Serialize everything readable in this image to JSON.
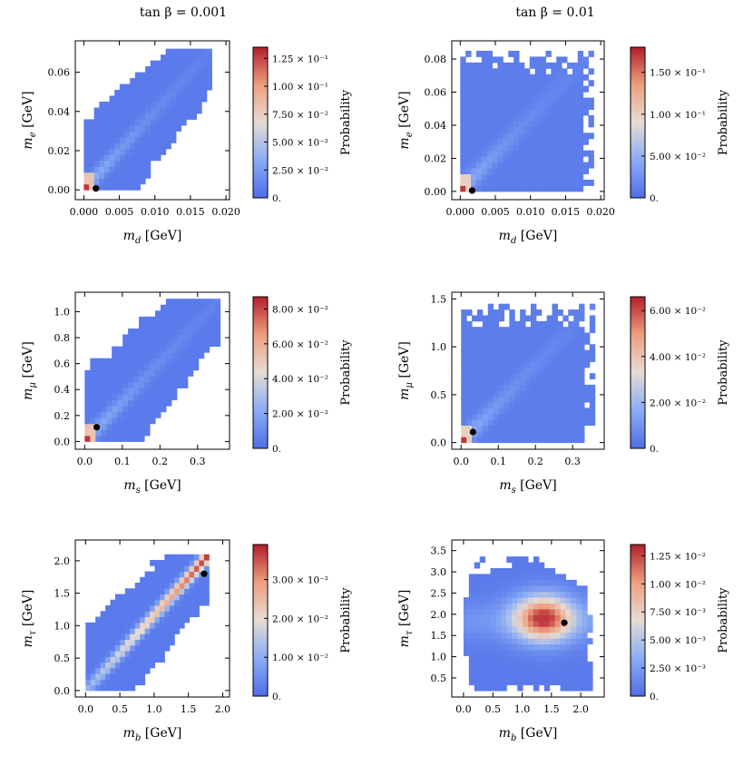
{
  "column_titles": [
    "tan β = 0.001",
    "tan β = 0.01"
  ],
  "chart_data": [
    {
      "type": "heatmap",
      "title": "tan β = 0.001",
      "xlabel": "m_d [GeV]",
      "xlabel_main": "m",
      "xlabel_sub": "d",
      "xlabel_unit": " [GeV]",
      "ylabel": "m_e [GeV]",
      "ylabel_main": "m",
      "ylabel_sub": "e",
      "ylabel_unit": " [GeV]",
      "xlim": [
        -0.0012,
        0.0205
      ],
      "ylim": [
        -0.005,
        0.076
      ],
      "xticks": [
        0,
        0.005,
        0.01,
        0.015,
        0.02
      ],
      "xtick_labels": [
        "0.000",
        "0.005",
        "0.010",
        "0.015",
        "0.020"
      ],
      "yticks": [
        0,
        0.02,
        0.04,
        0.06
      ],
      "ytick_labels": [
        "0.00",
        "0.02",
        "0.04",
        "0.06"
      ],
      "shape": "band",
      "domain": {
        "x": [
          0,
          0.018
        ],
        "y": [
          0,
          0.072
        ]
      },
      "nx": 25,
      "ny": 24,
      "marker": [
        0.0017,
        0.0007
      ],
      "colorbar": {
        "label": "Probability",
        "max": 0.135,
        "ticks": [
          0,
          0.025,
          0.05,
          0.075,
          0.1,
          0.125
        ],
        "tick_labels": [
          "0.",
          "2.50 × 10⁻²",
          "5.00 × 10⁻²",
          "7.50 × 10⁻²",
          "1.00 × 10⁻¹",
          "1.25 × 10⁻¹"
        ]
      }
    },
    {
      "type": "heatmap",
      "title": "tan β = 0.01",
      "xlabel": "m_d [GeV]",
      "xlabel_main": "m",
      "xlabel_sub": "d",
      "xlabel_unit": " [GeV]",
      "ylabel": "m_e [GeV]",
      "ylabel_main": "m",
      "ylabel_sub": "e",
      "ylabel_unit": " [GeV]",
      "xlim": [
        -0.0012,
        0.0205
      ],
      "ylim": [
        -0.005,
        0.091
      ],
      "xticks": [
        0,
        0.005,
        0.01,
        0.015,
        0.02
      ],
      "xtick_labels": [
        "0.000",
        "0.005",
        "0.010",
        "0.015",
        "0.020"
      ],
      "yticks": [
        0,
        0.02,
        0.04,
        0.06,
        0.08
      ],
      "ytick_labels": [
        "0.00",
        "0.02",
        "0.04",
        "0.06",
        "0.08"
      ],
      "shape": "wide",
      "domain": {
        "x": [
          0,
          0.019
        ],
        "y": [
          0,
          0.085
        ]
      },
      "nx": 25,
      "ny": 24,
      "marker": [
        0.0017,
        0.0005
      ],
      "colorbar": {
        "label": "Probability",
        "max": 0.18,
        "ticks": [
          0,
          0.05,
          0.1,
          0.15
        ],
        "tick_labels": [
          "0.",
          "5.00 × 10⁻²",
          "1.00 × 10⁻¹",
          "1.50 × 10⁻¹"
        ]
      }
    },
    {
      "type": "heatmap",
      "title": "",
      "xlabel": "m_s [GeV]",
      "xlabel_main": "m",
      "xlabel_sub": "s",
      "xlabel_unit": " [GeV]",
      "ylabel": "m_μ [GeV]",
      "ylabel_main": "m",
      "ylabel_sub": "μ",
      "ylabel_unit": " [GeV]",
      "xlim": [
        -0.025,
        0.385
      ],
      "ylim": [
        -0.06,
        1.15
      ],
      "xticks": [
        0,
        0.1,
        0.2,
        0.3
      ],
      "xtick_labels": [
        "0.0",
        "0.1",
        "0.2",
        "0.3"
      ],
      "yticks": [
        0,
        0.2,
        0.4,
        0.6,
        0.8,
        1.0
      ],
      "ytick_labels": [
        "0.0",
        "0.2",
        "0.4",
        "0.6",
        "0.8",
        "1.0"
      ],
      "shape": "band",
      "domain": {
        "x": [
          0,
          0.36
        ],
        "y": [
          0,
          1.1
        ]
      },
      "nx": 25,
      "ny": 24,
      "marker": [
        0.032,
        0.11
      ],
      "colorbar": {
        "label": "Probability",
        "max": 0.087,
        "ticks": [
          0,
          0.02,
          0.04,
          0.06,
          0.08
        ],
        "tick_labels": [
          "0.",
          "2.00 × 10⁻²",
          "4.00 × 10⁻²",
          "6.00 × 10⁻²",
          "8.00 × 10⁻²"
        ]
      }
    },
    {
      "type": "heatmap",
      "title": "",
      "xlabel": "m_s [GeV]",
      "xlabel_main": "m",
      "xlabel_sub": "s",
      "xlabel_unit": " [GeV]",
      "ylabel": "m_μ [GeV]",
      "ylabel_main": "m",
      "ylabel_sub": "μ",
      "ylabel_unit": " [GeV]",
      "xlim": [
        -0.025,
        0.385
      ],
      "ylim": [
        -0.07,
        1.57
      ],
      "xticks": [
        0,
        0.1,
        0.2,
        0.3
      ],
      "xtick_labels": [
        "0.0",
        "0.1",
        "0.2",
        "0.3"
      ],
      "yticks": [
        0,
        0.5,
        1.0,
        1.5
      ],
      "ytick_labels": [
        "0.0",
        "0.5",
        "1.0",
        "1.5"
      ],
      "shape": "wide",
      "domain": {
        "x": [
          0,
          0.36
        ],
        "y": [
          0,
          1.45
        ]
      },
      "nx": 25,
      "ny": 24,
      "marker": [
        0.032,
        0.11
      ],
      "colorbar": {
        "label": "Probability",
        "max": 0.066,
        "ticks": [
          0,
          0.02,
          0.04,
          0.06
        ],
        "tick_labels": [
          "0.",
          "2.00 × 10⁻²",
          "4.00 × 10⁻²",
          "6.00 × 10⁻²"
        ]
      }
    },
    {
      "type": "heatmap",
      "title": "",
      "xlabel": "m_b [GeV]",
      "xlabel_main": "m",
      "xlabel_sub": "b",
      "xlabel_unit": " [GeV]",
      "ylabel": "m_τ [GeV]",
      "ylabel_main": "m",
      "ylabel_sub": "τ",
      "ylabel_unit": " [GeV]",
      "xlim": [
        -0.15,
        2.1
      ],
      "ylim": [
        -0.1,
        2.32
      ],
      "xticks": [
        0,
        0.5,
        1.0,
        1.5,
        2.0
      ],
      "xtick_labels": [
        "0.0",
        "0.5",
        "1.0",
        "1.5",
        "2.0"
      ],
      "yticks": [
        0,
        0.5,
        1.0,
        1.5,
        2.0
      ],
      "ytick_labels": [
        "0.0",
        "0.5",
        "1.0",
        "1.5",
        "2.0"
      ],
      "shape": "band_bottom",
      "domain": {
        "x": [
          0,
          1.8
        ],
        "y": [
          0,
          2.1
        ]
      },
      "nx": 25,
      "ny": 24,
      "marker": [
        1.73,
        1.8
      ],
      "colorbar": {
        "label": "Probability",
        "max": 0.039,
        "ticks": [
          0,
          0.01,
          0.02,
          0.03
        ],
        "tick_labels": [
          "0.",
          "1.00 × 10⁻²",
          "2.00 × 10⁻²",
          "3.00 × 10⁻²"
        ]
      }
    },
    {
      "type": "heatmap",
      "title": "",
      "xlabel": "m_b [GeV]",
      "xlabel_main": "m",
      "xlabel_sub": "b",
      "xlabel_unit": " [GeV]",
      "ylabel": "m_τ [GeV]",
      "ylabel_main": "m",
      "ylabel_sub": "τ",
      "ylabel_unit": " [GeV]",
      "xlim": [
        -0.2,
        2.4
      ],
      "ylim": [
        0.05,
        3.75
      ],
      "xticks": [
        0,
        0.5,
        1.0,
        1.5,
        2.0
      ],
      "xtick_labels": [
        "0.0",
        "0.5",
        "1.0",
        "1.5",
        "2.0"
      ],
      "yticks": [
        0.5,
        1.0,
        1.5,
        2.0,
        2.5,
        3.0,
        3.5
      ],
      "ytick_labels": [
        "0.5",
        "1.0",
        "1.5",
        "2.0",
        "2.5",
        "3.0",
        "3.5"
      ],
      "shape": "triangle",
      "domain": {
        "x": [
          0,
          2.2
        ],
        "y": [
          0.2,
          3.5
        ]
      },
      "nx": 24,
      "ny": 24,
      "marker": [
        1.72,
        1.8
      ],
      "colorbar": {
        "label": "Probability",
        "max": 0.0135,
        "ticks": [
          0,
          0.0025,
          0.005,
          0.0075,
          0.01,
          0.0125
        ],
        "tick_labels": [
          "0.",
          "2.50 × 10⁻³",
          "5.00 × 10⁻³",
          "7.50 × 10⁻³",
          "1.00 × 10⁻²",
          "1.25 × 10⁻²"
        ]
      }
    }
  ]
}
